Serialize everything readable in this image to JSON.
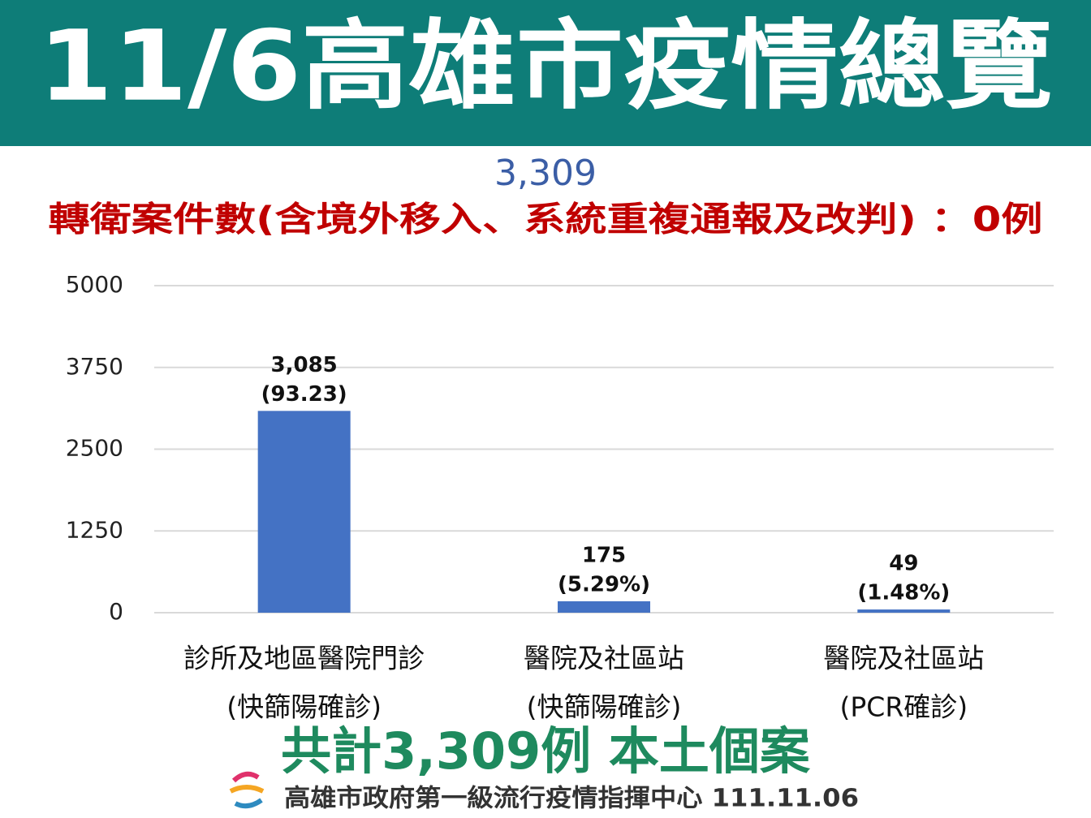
{
  "chart_data": {
    "type": "bar",
    "title": "11/6高雄市疫情總覽",
    "subtitle": "3,309",
    "note": "轉衛案件數(含境外移入、系統重複通報及改判) ：0例",
    "categories": [
      [
        "診所及地區醫院門診",
        "(快篩陽確診)"
      ],
      [
        "醫院及社區站",
        "(快篩陽確診)"
      ],
      [
        "醫院及社區站",
        "(PCR確診)"
      ]
    ],
    "values": [
      3085,
      175,
      49
    ],
    "value_labels": [
      [
        "3,085",
        "(93.23)"
      ],
      [
        "175",
        "(5.29%)"
      ],
      [
        "49",
        "(1.48%)"
      ]
    ],
    "color": "#4472c4",
    "ylim": [
      0,
      5000
    ],
    "yticks": [
      0,
      1250,
      2500,
      3750,
      5000
    ],
    "grid": true,
    "footer": "共計3,309例 本土個案",
    "source": "高雄市政府第一級流行疫情指揮中心 111.11.06"
  }
}
